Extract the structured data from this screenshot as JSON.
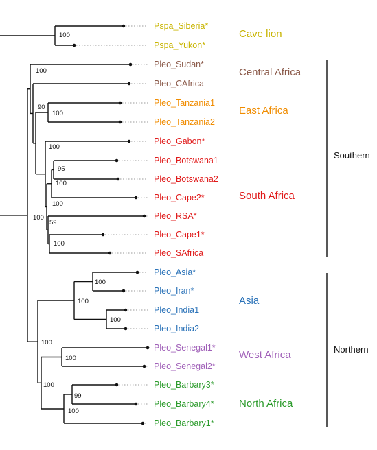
{
  "colors": {
    "cave_lion": "#c8b400",
    "central_africa": "#8b5a4a",
    "east_africa": "#f08c00",
    "south_africa": "#e01a1a",
    "asia": "#2a72b8",
    "west_africa": "#a060b8",
    "north_africa": "#2a9a2a",
    "branch": "#111111"
  },
  "leaves": [
    {
      "label": "Pspa_Siberia*",
      "color": "cave_lion"
    },
    {
      "label": "Pspa_Yukon*",
      "color": "cave_lion"
    },
    {
      "label": "Pleo_Sudan*",
      "color": "central_africa"
    },
    {
      "label": "Pleo_CAfrica",
      "color": "central_africa"
    },
    {
      "label": "Pleo_Tanzania1",
      "color": "east_africa"
    },
    {
      "label": "Pleo_Tanzania2",
      "color": "east_africa"
    },
    {
      "label": "Pleo_Gabon*",
      "color": "south_africa"
    },
    {
      "label": "Pleo_Botswana1",
      "color": "south_africa"
    },
    {
      "label": "Pleo_Botswana2",
      "color": "south_africa"
    },
    {
      "label": "Pleo_Cape2*",
      "color": "south_africa"
    },
    {
      "label": "Pleo_RSA*",
      "color": "south_africa"
    },
    {
      "label": "Pleo_Cape1*",
      "color": "south_africa"
    },
    {
      "label": "Pleo_SAfrica",
      "color": "south_africa"
    },
    {
      "label": "Pleo_Asia*",
      "color": "asia"
    },
    {
      "label": "Pleo_Iran*",
      "color": "asia"
    },
    {
      "label": "Pleo_India1",
      "color": "asia"
    },
    {
      "label": "Pleo_India2",
      "color": "asia"
    },
    {
      "label": "Pleo_Senegal1*",
      "color": "west_africa"
    },
    {
      "label": "Pleo_Senegal2*",
      "color": "west_africa"
    },
    {
      "label": "Pleo_Barbary3*",
      "color": "north_africa"
    },
    {
      "label": "Pleo_Barbary4*",
      "color": "north_africa"
    },
    {
      "label": "Pleo_Barbary1*",
      "color": "north_africa"
    }
  ],
  "groups": [
    {
      "label": "Cave lion",
      "color": "cave_lion"
    },
    {
      "label": "Central Africa",
      "color": "central_africa"
    },
    {
      "label": "East Africa",
      "color": "east_africa"
    },
    {
      "label": "South Africa",
      "color": "south_africa"
    },
    {
      "label": "Asia",
      "color": "asia"
    },
    {
      "label": "West Africa",
      "color": "west_africa"
    },
    {
      "label": "North Africa",
      "color": "north_africa"
    }
  ],
  "regions": [
    {
      "label": "Southern"
    },
    {
      "label": "Northern"
    }
  ],
  "support_values": [
    "100",
    "100",
    "90",
    "100",
    "100",
    "95",
    "100",
    "100",
    "100",
    "59",
    "100",
    "100",
    "100",
    "100",
    "100",
    "100",
    "100",
    "99",
    "100"
  ]
}
